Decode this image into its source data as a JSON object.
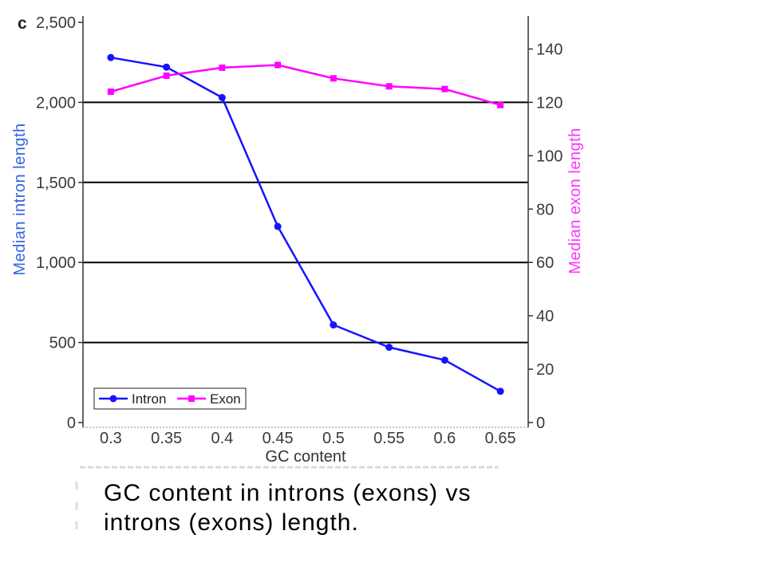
{
  "panel_label": "c",
  "caption": "GC content in introns (exons) vs introns (exons) length.",
  "chart_data": {
    "type": "line",
    "xlabel": "GC content",
    "categories": [
      "0.3",
      "0.35",
      "0.4",
      "0.45",
      "0.5",
      "0.55",
      "0.6",
      "0.65"
    ],
    "y_left": {
      "label": "Median intron length",
      "label_color": "#3366dd",
      "range": [
        0,
        2500
      ],
      "ticks": [
        0,
        500,
        1000,
        1500,
        2000,
        2500
      ],
      "tick_labels": [
        "0",
        "500",
        "1,000",
        "1,500",
        "2,000",
        "2,500"
      ]
    },
    "y_right": {
      "label": "Median exon length",
      "label_color": "#ff33ff",
      "range": [
        0,
        150
      ],
      "ticks": [
        0,
        20,
        40,
        60,
        80,
        100,
        120,
        140
      ],
      "tick_labels": [
        "0",
        "20",
        "40",
        "60",
        "80",
        "100",
        "120",
        "140"
      ]
    },
    "grid": true,
    "grid_values": [
      500,
      1000,
      1500,
      2000
    ],
    "legend": "bottom-left",
    "series": [
      {
        "name": "Intron",
        "axis": "left",
        "marker": "circle",
        "color": "#1414ff",
        "values": [
          2280,
          2220,
          2030,
          1225,
          610,
          470,
          390,
          195
        ]
      },
      {
        "name": "Exon",
        "axis": "right",
        "marker": "square",
        "color": "#ff00ff",
        "values": [
          124,
          130,
          133,
          134,
          129,
          126,
          125,
          119
        ]
      }
    ]
  }
}
